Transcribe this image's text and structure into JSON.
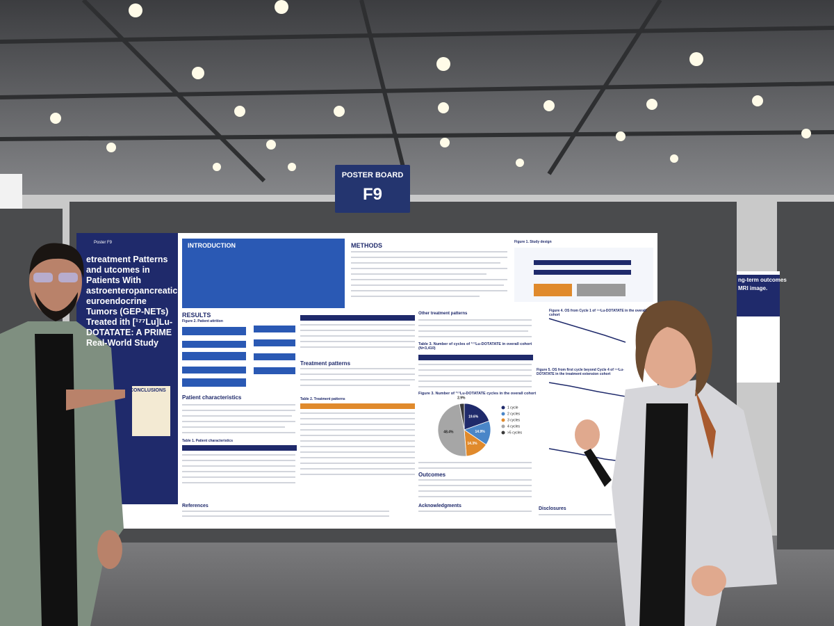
{
  "sign": {
    "label": "POSTER BOARD",
    "number": "F9"
  },
  "poster": {
    "id": "Poster F9",
    "title": "etreatment Patterns and utcomes in Patients With astroenteropancreatic euroendocrine Tumors (GEP-NETs) Treated ith [¹⁷⁷Lu]Lu-DOTATATE: A PRIME Real-World Study",
    "introduction": "INTRODUCTION",
    "methods": "METHODS",
    "results": "RESULTS",
    "conclusions": "& CONCLUSIONS",
    "figure1": "Figure 1. Study design",
    "figure2": "Figure 2. Patient attrition",
    "patient_characteristics": "Patient characteristics",
    "table1": "Table 1. Patient characteristics",
    "treatment_patterns": "Treatment patterns",
    "table2": "Table 2. Treatment patterns",
    "other_treatment_patterns": "Other treatment patterns",
    "table3": "Table 3. Number of cycles of ¹⁷⁷Lu-DOTATATE in overall cohort (N=3,410)",
    "figure3": {
      "title": "Figure 3. Number of ¹⁷⁷Lu-DOTATATE cycles in the overall cohort",
      "values": [
        19.6,
        14.9,
        14.3,
        48.4,
        2.9
      ],
      "value_labels": [
        "19.6%",
        "14.9%",
        "14.3%",
        "48.4%",
        "2.9%"
      ],
      "colors": [
        "#1f2a6b",
        "#4a86c8",
        "#e08a2c",
        "#a6a6a6",
        "#3a3a3a"
      ],
      "legend": [
        "1 cycle",
        "2 cycles",
        "3 cycles",
        "4 cycles",
        ">5 cycles"
      ]
    },
    "outcomes": "Outcomes",
    "figure4": "Figure 4. OS from Cycle 1 of ¹⁷⁷Lu-DOTATATE in the overall cohort",
    "figure5": "Figure 5. OS from first cycle beyond Cycle 4 of ¹⁷⁷Lu-DOTATATE in the treatment extension cohort",
    "references": "References",
    "acknowledgments": "Acknowledgments",
    "disclosures": "Disclosures"
  },
  "side_poster": {
    "line1": "ng-term outcomes",
    "line2": "MRI image."
  }
}
